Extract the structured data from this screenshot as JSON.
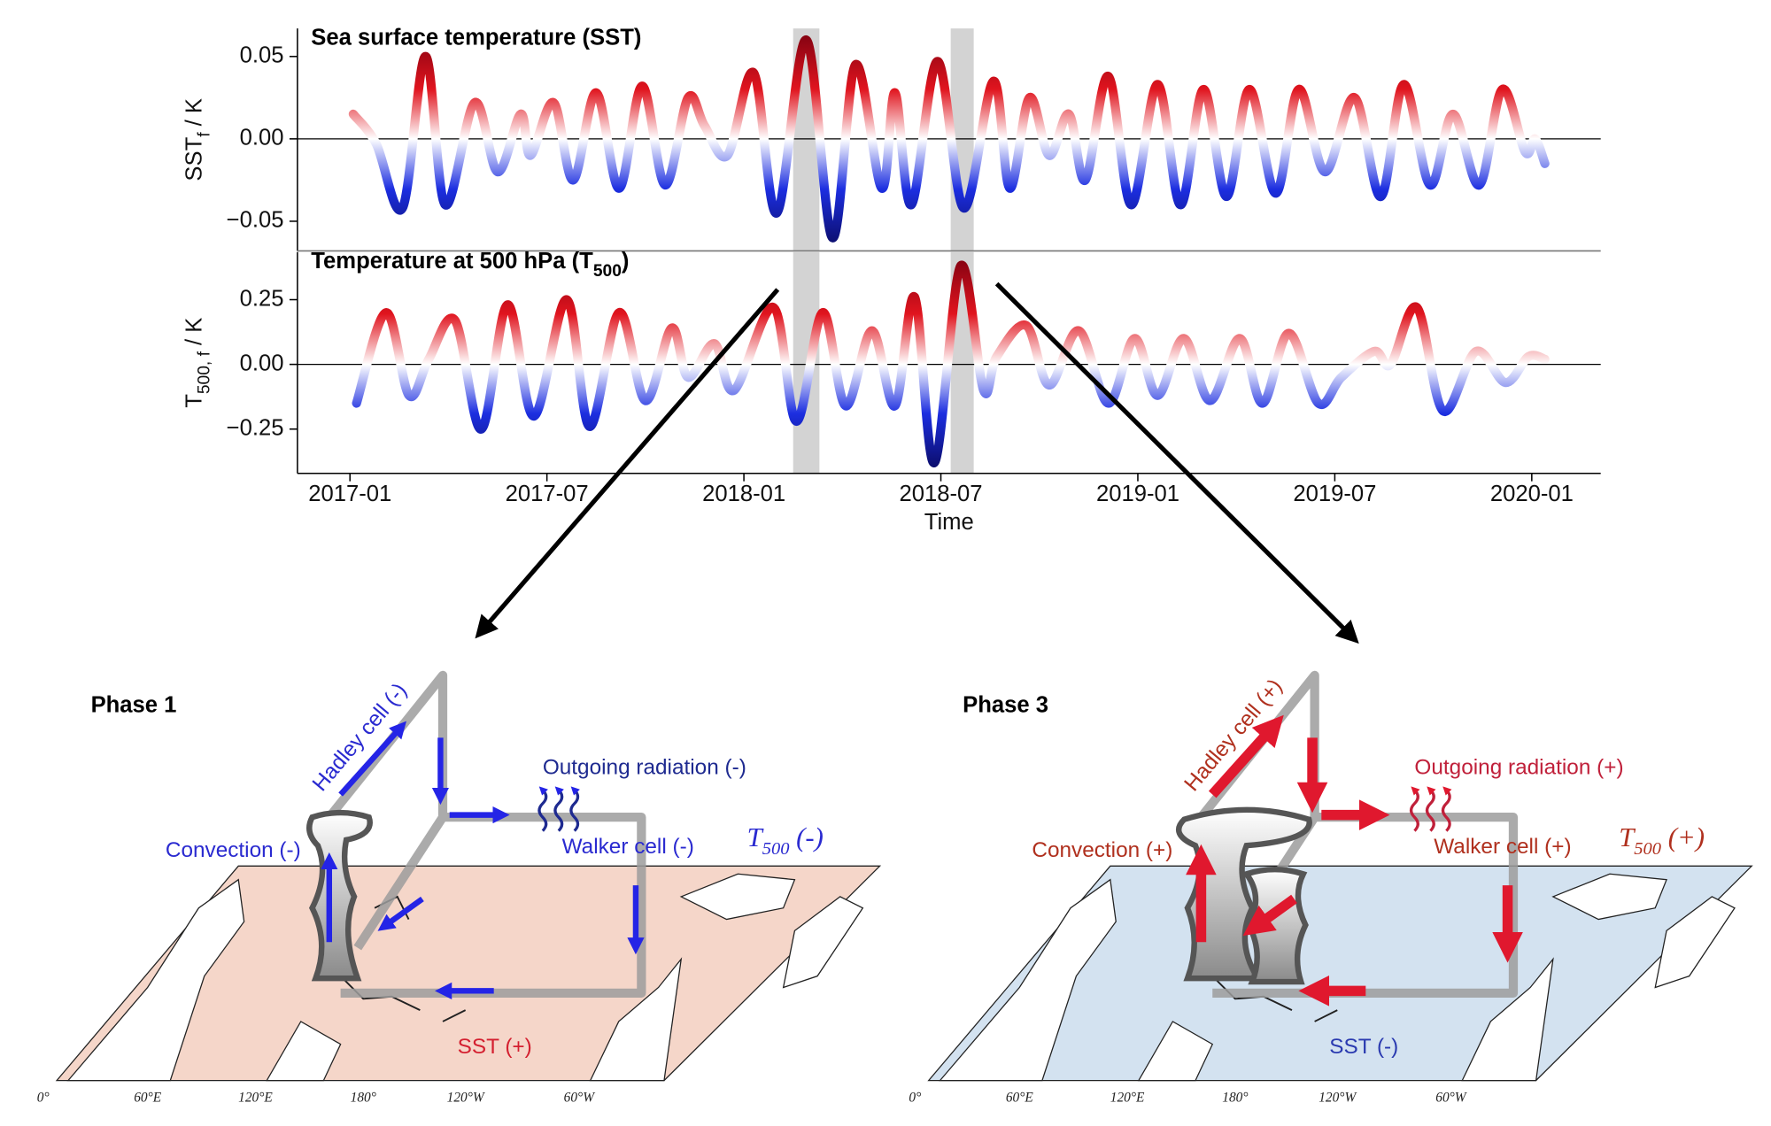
{
  "chart_data": [
    {
      "type": "line",
      "title": [
        "Sea surface temperature (SST)"
      ],
      "ylabel": [
        "SST",
        "f",
        " / K"
      ],
      "xlim": [
        -1.6,
        38.1
      ],
      "ylim": [
        -0.068,
        0.067
      ],
      "yticks": [
        {
          "value": -0.05,
          "label": "−0.05"
        },
        {
          "value": 0,
          "label": "0.00"
        },
        0.05
      ],
      "spans": [
        [
          13.5,
          14.3
        ],
        [
          18.3,
          19.0
        ]
      ],
      "colormap": [
        "#7a0010",
        "#e0141e",
        "#ffffff",
        "#1c2ee0",
        "#0a0a60"
      ],
      "x": [
        0.1,
        0.8,
        1.6,
        2.3,
        2.9,
        3.8,
        4.5,
        5.2,
        5.5,
        6.2,
        6.8,
        7.5,
        8.2,
        8.9,
        9.6,
        10.3,
        10.8,
        11.5,
        12.3,
        13.0,
        13.9,
        14.7,
        15.4,
        16.2,
        16.6,
        17.1,
        17.9,
        18.7,
        19.6,
        20.1,
        20.7,
        21.3,
        21.9,
        22.4,
        23.1,
        23.8,
        24.6,
        25.3,
        26.0,
        26.7,
        27.4,
        28.2,
        28.9,
        29.7,
        30.6,
        31.4,
        32.1,
        32.9,
        33.6,
        34.4,
        35.1,
        35.8,
        36.1,
        36.4
      ],
      "values": [
        0.015,
        -0.003,
        -0.042,
        0.05,
        -0.04,
        0.022,
        -0.02,
        0.015,
        -0.01,
        0.022,
        -0.025,
        0.028,
        -0.03,
        0.032,
        -0.028,
        0.025,
        0.008,
        -0.01,
        0.04,
        -0.045,
        0.06,
        -0.06,
        0.045,
        -0.03,
        0.028,
        -0.04,
        0.047,
        -0.042,
        0.035,
        -0.03,
        0.025,
        -0.01,
        0.015,
        -0.025,
        0.038,
        -0.04,
        0.033,
        -0.04,
        0.03,
        -0.035,
        0.03,
        -0.033,
        0.03,
        -0.02,
        0.025,
        -0.035,
        0.033,
        -0.028,
        0.015,
        -0.028,
        0.03,
        -0.008,
        0.0,
        -0.015
      ]
    },
    {
      "type": "line",
      "title": [
        "Temperature at 500 hPa (T",
        "500",
        ")"
      ],
      "ylabel": [
        "T",
        "500, f",
        " / K"
      ],
      "xlabel": "Time",
      "xlim": [
        -1.6,
        38.1
      ],
      "ylim": [
        -0.421,
        0.434
      ],
      "yticks": [
        {
          "value": -0.25,
          "label": "−0.25"
        },
        {
          "value": 0,
          "label": "0.00"
        },
        0.25
      ],
      "xticks": [
        {
          "value": 0,
          "label": "2017-01"
        },
        {
          "value": 6,
          "label": "2017-07"
        },
        {
          "value": 12,
          "label": "2018-01"
        },
        {
          "value": 18,
          "label": "2018-07"
        },
        {
          "value": 24,
          "label": "2019-01"
        },
        {
          "value": 30,
          "label": "2019-07"
        },
        {
          "value": 36,
          "label": "2020-01"
        }
      ],
      "spans": [
        [
          13.5,
          14.3
        ],
        [
          18.3,
          19.0
        ]
      ],
      "colormap": [
        "#7a0010",
        "#e0141e",
        "#ffffff",
        "#1c2ee0",
        "#0a0a60"
      ],
      "x": [
        0.2,
        1.1,
        1.8,
        2.4,
        3.2,
        4.0,
        4.8,
        5.6,
        6.6,
        7.3,
        8.2,
        9.0,
        9.8,
        10.3,
        11.1,
        11.7,
        12.9,
        13.6,
        14.4,
        15.1,
        15.9,
        16.6,
        17.2,
        17.8,
        18.6,
        19.3,
        19.7,
        20.6,
        21.3,
        22.2,
        23.1,
        23.9,
        24.6,
        25.4,
        26.2,
        27.1,
        27.8,
        28.6,
        29.5,
        30.2,
        31.2,
        31.7,
        32.5,
        33.3,
        34.3,
        35.2,
        35.9,
        36.4
      ],
      "values": [
        -0.15,
        0.2,
        -0.12,
        0.02,
        0.17,
        -0.25,
        0.23,
        -0.2,
        0.25,
        -0.24,
        0.2,
        -0.14,
        0.14,
        -0.05,
        0.08,
        -0.1,
        0.22,
        -0.22,
        0.2,
        -0.16,
        0.13,
        -0.16,
        0.26,
        -0.38,
        0.38,
        -0.1,
        0.03,
        0.15,
        -0.08,
        0.13,
        -0.15,
        0.1,
        -0.12,
        0.1,
        -0.14,
        0.1,
        -0.15,
        0.12,
        -0.15,
        -0.05,
        0.05,
        0.0,
        0.22,
        -0.18,
        0.05,
        -0.07,
        0.03,
        0.02
      ]
    }
  ],
  "diagrams": [
    {
      "title": "Phase 1",
      "hadley": "Hadley cell (-)",
      "radiation": "Outgoing radiation (-)",
      "convection": "Convection (-)",
      "walker": "Walker cell (-)",
      "t500": [
        "T",
        "500",
        " (-)"
      ],
      "sst": "SST (+)",
      "lons": [
        "0°",
        "60°E",
        "120°E",
        "180°",
        "120°W",
        "60°W"
      ],
      "map_color": "#f5d6c9",
      "arrow_color": "#2424e6",
      "label_color": "#2a2ad0",
      "radiation_color": "#1e2a90",
      "sst_color": "#d42030"
    },
    {
      "title": "Phase 3",
      "hadley": "Hadley cell (+)",
      "radiation": "Outgoing radiation (+)",
      "convection": "Convection (+)",
      "walker": "Walker cell (+)",
      "t500": [
        "T",
        "500",
        " (+)"
      ],
      "sst": "SST (-)",
      "lons": [
        "0°",
        "60°E",
        "120°E",
        "180°",
        "120°W",
        "60°W"
      ],
      "map_color": "#d3e2f0",
      "arrow_color": "#e0182e",
      "label_color": "#b0301e",
      "radiation_color": "#c0203a",
      "sst_color": "#2a3ab0"
    }
  ]
}
